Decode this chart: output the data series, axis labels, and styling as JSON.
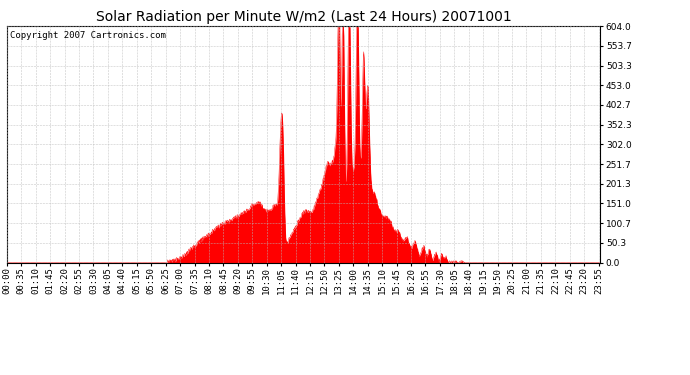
{
  "title": "Solar Radiation per Minute W/m2 (Last 24 Hours) 20071001",
  "copyright": "Copyright 2007 Cartronics.com",
  "fill_color": "#FF0000",
  "line_color": "#FF0000",
  "background_color": "#FFFFFF",
  "grid_color": "#BBBBBB",
  "dashed_zero_color": "#FF0000",
  "ymin": 0.0,
  "ymax": 604.0,
  "yticks": [
    0.0,
    50.3,
    100.7,
    151.0,
    201.3,
    251.7,
    302.0,
    352.3,
    402.7,
    453.0,
    503.3,
    553.7,
    604.0
  ],
  "n_minutes": 1440,
  "title_fontsize": 10,
  "axis_fontsize": 6.5,
  "copyright_fontsize": 6.5
}
